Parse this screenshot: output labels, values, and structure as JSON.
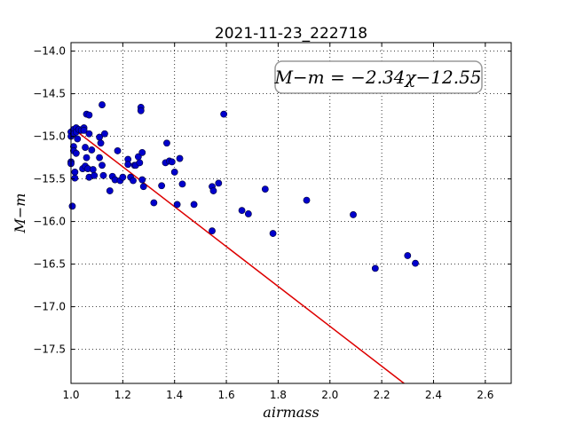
{
  "chart_data": {
    "type": "scatter",
    "title": "2021-11-23_222718",
    "xlabel": "airmass",
    "ylabel": "M−m",
    "xlim": [
      1.0,
      2.7
    ],
    "ylim": [
      -17.9,
      -13.9
    ],
    "y_inverted": true,
    "grid": true,
    "x_ticks": [
      1.0,
      1.2,
      1.4,
      1.6,
      1.8,
      2.0,
      2.2,
      2.4,
      2.6
    ],
    "x_tick_labels": [
      "1.0",
      "1.2",
      "1.4",
      "1.6",
      "1.8",
      "2.0",
      "2.2",
      "2.4",
      "2.6"
    ],
    "y_ticks": [
      -14.0,
      -14.5,
      -15.0,
      -15.5,
      -16.0,
      -16.5,
      -17.0,
      -17.5
    ],
    "y_tick_labels": [
      "−14.0",
      "−14.5",
      "−15.0",
      "−15.5",
      "−16.0",
      "−16.5",
      "−17.0",
      "−17.5"
    ],
    "annotation": "M−m = −2.34χ−12.55",
    "fit": {
      "slope": -2.34,
      "intercept": -12.55,
      "color": "#dd0000"
    },
    "point_color": "#0000cc",
    "points": [
      [
        1.0,
        -14.95
      ],
      [
        1.0,
        -15.0
      ],
      [
        1.0,
        -15.3
      ],
      [
        1.0,
        -15.32
      ],
      [
        1.005,
        -15.82
      ],
      [
        1.01,
        -14.92
      ],
      [
        1.01,
        -14.97
      ],
      [
        1.01,
        -15.12
      ],
      [
        1.01,
        -15.17
      ],
      [
        1.015,
        -15.42
      ],
      [
        1.015,
        -15.49
      ],
      [
        1.02,
        -14.9
      ],
      [
        1.02,
        -14.95
      ],
      [
        1.02,
        -15.2
      ],
      [
        1.025,
        -15.03
      ],
      [
        1.03,
        -14.92
      ],
      [
        1.04,
        -14.93
      ],
      [
        1.045,
        -15.38
      ],
      [
        1.05,
        -14.9
      ],
      [
        1.05,
        -14.93
      ],
      [
        1.055,
        -15.13
      ],
      [
        1.055,
        -15.35
      ],
      [
        1.06,
        -14.74
      ],
      [
        1.06,
        -15.25
      ],
      [
        1.065,
        -15.38
      ],
      [
        1.07,
        -14.75
      ],
      [
        1.07,
        -14.97
      ],
      [
        1.07,
        -15.48
      ],
      [
        1.08,
        -15.16
      ],
      [
        1.085,
        -15.39
      ],
      [
        1.09,
        -15.46
      ],
      [
        1.11,
        -15.25
      ],
      [
        1.11,
        -15.01
      ],
      [
        1.115,
        -15.08
      ],
      [
        1.12,
        -14.63
      ],
      [
        1.12,
        -15.34
      ],
      [
        1.125,
        -15.46
      ],
      [
        1.13,
        -14.97
      ],
      [
        1.15,
        -15.64
      ],
      [
        1.16,
        -15.47
      ],
      [
        1.17,
        -15.51
      ],
      [
        1.18,
        -15.17
      ],
      [
        1.19,
        -15.52
      ],
      [
        1.2,
        -15.48
      ],
      [
        1.22,
        -15.27
      ],
      [
        1.22,
        -15.33
      ],
      [
        1.23,
        -15.48
      ],
      [
        1.24,
        -15.52
      ],
      [
        1.245,
        -15.34
      ],
      [
        1.25,
        -15.34
      ],
      [
        1.26,
        -15.24
      ],
      [
        1.265,
        -15.31
      ],
      [
        1.27,
        -14.66
      ],
      [
        1.27,
        -14.7
      ],
      [
        1.275,
        -15.19
      ],
      [
        1.275,
        -15.51
      ],
      [
        1.28,
        -15.59
      ],
      [
        1.32,
        -15.78
      ],
      [
        1.35,
        -15.58
      ],
      [
        1.365,
        -15.31
      ],
      [
        1.37,
        -15.08
      ],
      [
        1.38,
        -15.29
      ],
      [
        1.39,
        -15.3
      ],
      [
        1.4,
        -15.42
      ],
      [
        1.41,
        -15.8
      ],
      [
        1.42,
        -15.26
      ],
      [
        1.43,
        -15.56
      ],
      [
        1.475,
        -15.8
      ],
      [
        1.545,
        -15.59
      ],
      [
        1.55,
        -15.64
      ],
      [
        1.545,
        -16.11
      ],
      [
        1.57,
        -15.55
      ],
      [
        1.59,
        -14.74
      ],
      [
        1.66,
        -15.87
      ],
      [
        1.685,
        -15.91
      ],
      [
        1.75,
        -15.62
      ],
      [
        1.78,
        -16.14
      ],
      [
        1.91,
        -15.75
      ],
      [
        2.09,
        -15.92
      ],
      [
        2.175,
        -16.55
      ],
      [
        2.3,
        -16.4
      ],
      [
        2.33,
        -16.49
      ]
    ]
  }
}
